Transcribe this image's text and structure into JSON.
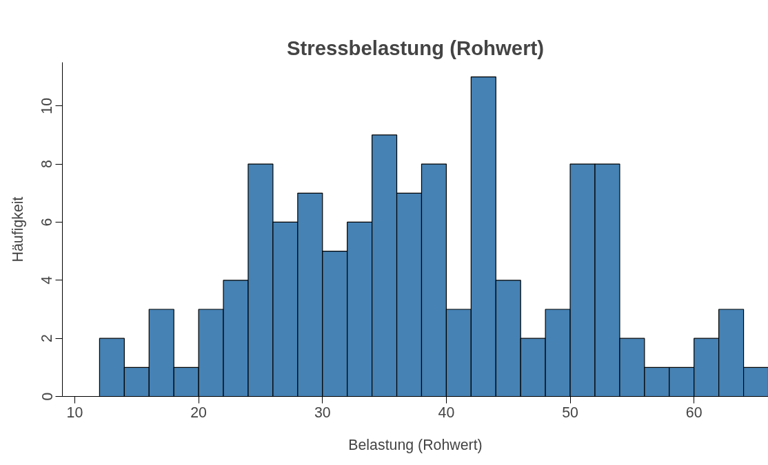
{
  "chart_data": {
    "type": "histogram",
    "title": "Stressbelastung (Rohwert)",
    "xlabel": "Belastung (Rohwert)",
    "ylabel": "Häufigkeit",
    "bins": [
      12,
      14,
      16,
      18,
      20,
      22,
      24,
      26,
      28,
      30,
      32,
      34,
      36,
      38,
      40,
      42,
      44,
      46,
      48,
      50,
      52,
      54,
      56,
      58,
      60,
      62,
      64,
      66
    ],
    "values": [
      2,
      1,
      3,
      1,
      3,
      4,
      8,
      6,
      7,
      5,
      6,
      9,
      7,
      8,
      3,
      11,
      4,
      2,
      3,
      8,
      8,
      2,
      1,
      1,
      2,
      3,
      1
    ],
    "color": "#4682b4",
    "xlim": [
      9,
      66
    ],
    "xticks": [
      10,
      20,
      30,
      40,
      50,
      60
    ],
    "ylim": [
      0,
      11.5
    ],
    "yticks": [
      0,
      2,
      4,
      6,
      8,
      10
    ],
    "grid": false
  }
}
